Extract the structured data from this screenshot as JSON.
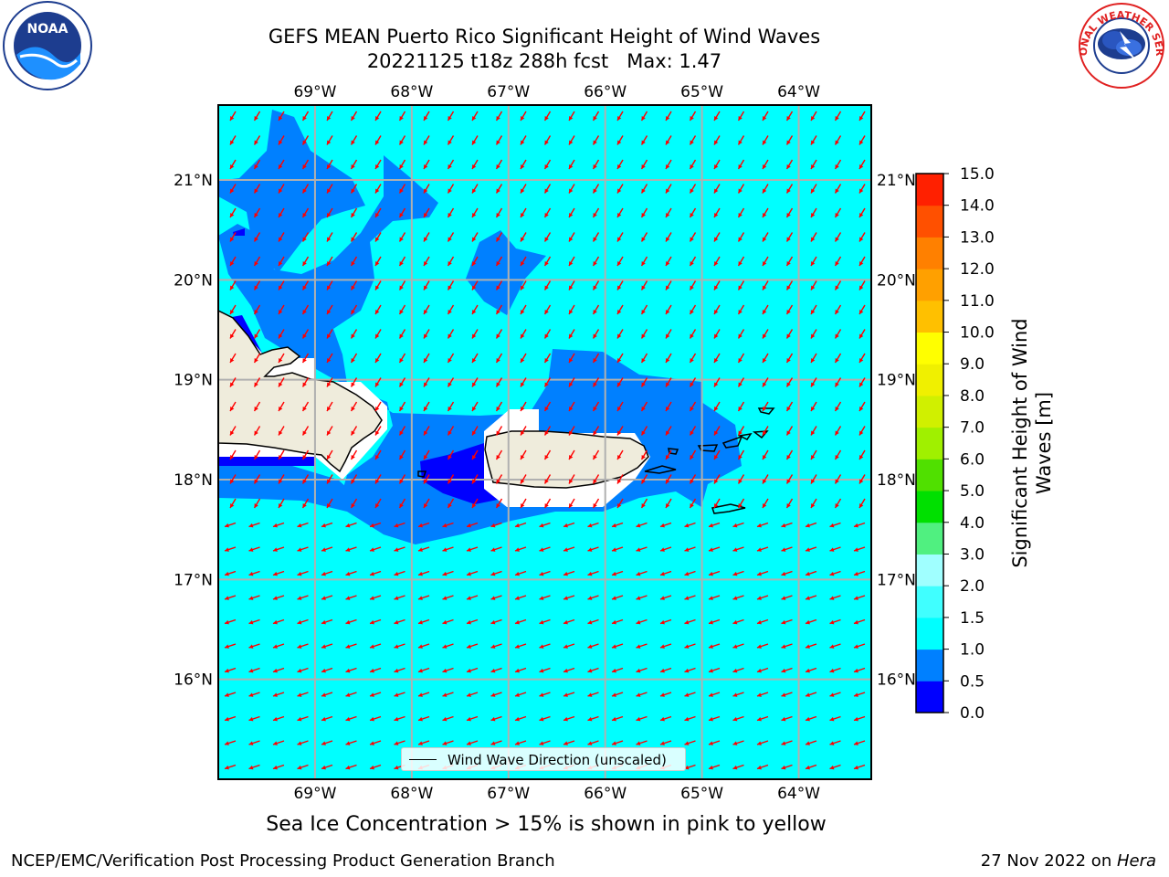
{
  "title": {
    "line1": "GEFS MEAN Puerto Rico Significant Height of Wind Waves",
    "line2": "20221125 t18z 288h fcst   Max: 1.47"
  },
  "logos": {
    "left": {
      "name": "noaa-logo",
      "text": "NOAA"
    },
    "right": {
      "name": "nws-logo",
      "text": "NATIONAL WEATHER SERVICE"
    }
  },
  "map": {
    "lon_range": [
      -70.0,
      -63.25
    ],
    "lat_range": [
      15.0,
      21.75
    ],
    "lon_ticks": [
      {
        "value": -69,
        "label": "69°W"
      },
      {
        "value": -68,
        "label": "68°W"
      },
      {
        "value": -67,
        "label": "67°W"
      },
      {
        "value": -66,
        "label": "66°W"
      },
      {
        "value": -65,
        "label": "65°W"
      },
      {
        "value": -64,
        "label": "64°W"
      }
    ],
    "lat_ticks": [
      {
        "value": 21,
        "label": "21°N"
      },
      {
        "value": 20,
        "label": "20°N"
      },
      {
        "value": 19,
        "label": "19°N"
      },
      {
        "value": 18,
        "label": "18°N"
      },
      {
        "value": 17,
        "label": "17°N"
      },
      {
        "value": 16,
        "label": "16°N"
      }
    ],
    "grid": true,
    "background_color": "#00ffff",
    "land_color": "#efecdc",
    "arrow_color": "#ff0000",
    "legend": {
      "label": "Wind Wave Direction (unscaled)",
      "placement": "bottom-center"
    }
  },
  "colorbar": {
    "title": "Significant Height of Wind Waves [m]",
    "levels": [
      {
        "label": "0.0",
        "value": 0.0,
        "color": "#0000ff"
      },
      {
        "label": "0.5",
        "value": 0.5,
        "color": "#0080ff"
      },
      {
        "label": "1.0",
        "value": 1.0,
        "color": "#00ffff"
      },
      {
        "label": "1.5",
        "value": 1.5,
        "color": "#40ffff"
      },
      {
        "label": "2.0",
        "value": 2.0,
        "color": "#a0ffff"
      },
      {
        "label": "3.0",
        "value": 3.0,
        "color": "#50f080"
      },
      {
        "label": "4.0",
        "value": 4.0,
        "color": "#00e000"
      },
      {
        "label": "5.0",
        "value": 5.0,
        "color": "#50e000"
      },
      {
        "label": "6.0",
        "value": 6.0,
        "color": "#a0f000"
      },
      {
        "label": "7.0",
        "value": 7.0,
        "color": "#d0f000"
      },
      {
        "label": "8.0",
        "value": 8.0,
        "color": "#f0f000"
      },
      {
        "label": "9.0",
        "value": 9.0,
        "color": "#ffff00"
      },
      {
        "label": "10.0",
        "value": 10.0,
        "color": "#ffc000"
      },
      {
        "label": "11.0",
        "value": 11.0,
        "color": "#ffa000"
      },
      {
        "label": "12.0",
        "value": 12.0,
        "color": "#ff8000"
      },
      {
        "label": "13.0",
        "value": 13.0,
        "color": "#ff5000"
      },
      {
        "label": "14.0",
        "value": 14.0,
        "color": "#ff2000"
      },
      {
        "label": "15.0",
        "value": 15.0,
        "color": null
      }
    ]
  },
  "footer_note": "Sea Ice Concentration > 15% is shown in pink to yellow",
  "credit_left": "NCEP/EMC/Verification Post Processing Product Generation Branch",
  "credit_right": {
    "date": "27 Nov 2022 on ",
    "host": "Hera"
  }
}
